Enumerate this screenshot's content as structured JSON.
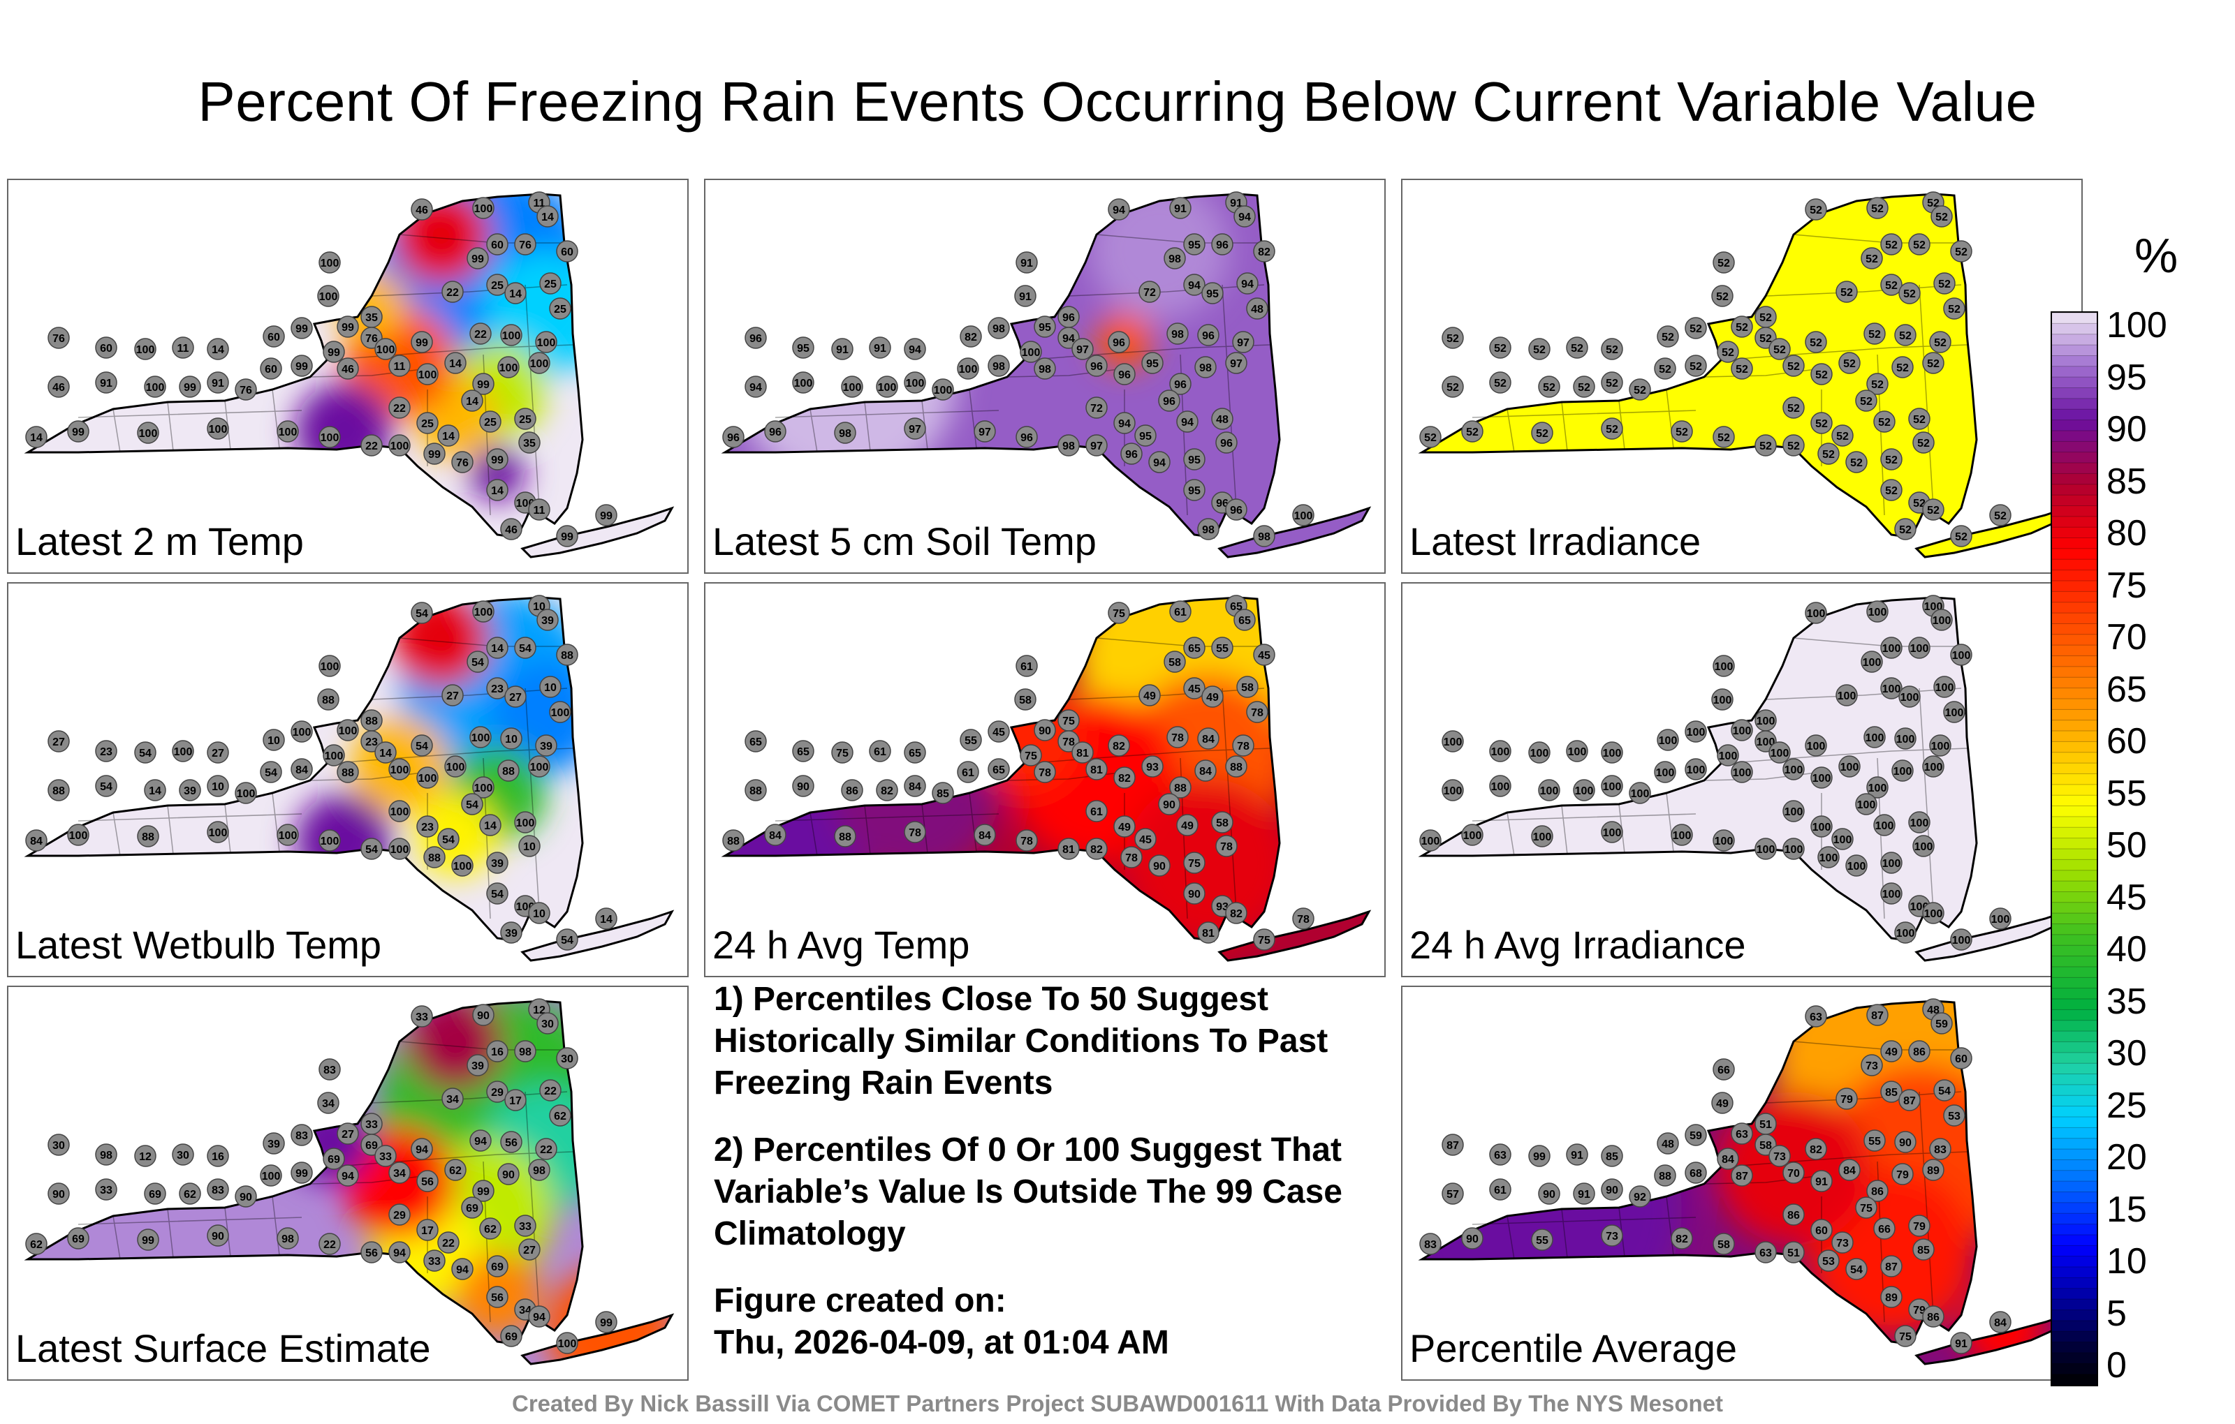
{
  "title": "Percent Of Freezing Rain Events Occurring Below Current Variable Value",
  "panels": [
    {
      "label": "Latest 2 m Temp"
    },
    {
      "label": "Latest 5 cm Soil Temp"
    },
    {
      "label": "Latest Irradiance"
    },
    {
      "label": "Latest Wetbulb Temp"
    },
    {
      "label": "24 h Avg Temp"
    },
    {
      "label": "24 h Avg Irradiance"
    },
    {
      "label": "Latest Surface Estimate"
    },
    {
      "label": "Percentile Average"
    }
  ],
  "notes": {
    "n1": "1) Percentiles Close To 50 Suggest Historically Similar Conditions To Past Freezing Rain Events",
    "n2": "2) Percentiles Of 0 Or 100 Suggest That Variable’s Value Is Outside The 99 Case Climatology",
    "created_label": "Figure created on:",
    "created_value": "Thu, 2026-04-09, at 01:04 AM"
  },
  "colorbar": {
    "unit": "%",
    "ticks": [
      "100",
      "95",
      "90",
      "85",
      "80",
      "75",
      "70",
      "65",
      "60",
      "55",
      "50",
      "45",
      "40",
      "35",
      "30",
      "25",
      "20",
      "15",
      "10",
      "5",
      "0"
    ]
  },
  "footer": "Created By Nick Bassill Via COMET Partners Project SUBAWD001611 With Data Provided By The NYS Mesonet",
  "chart_data": [
    {
      "type": "heatmap",
      "title": "Latest 2 m Temp",
      "units": "%",
      "range": [
        0,
        100
      ],
      "station_values": [
        46,
        100,
        11,
        14,
        60,
        76,
        60,
        99,
        100,
        22,
        25,
        14,
        25,
        25,
        35,
        99,
        76,
        99,
        100,
        22,
        100,
        100,
        100,
        100,
        99,
        14,
        14,
        100,
        11,
        46,
        99,
        99,
        60,
        76,
        91,
        99,
        100,
        91
      ]
    },
    {
      "type": "heatmap",
      "title": "Latest 5 cm Soil Temp",
      "units": "%",
      "range": [
        0,
        100
      ],
      "station_values": [
        94,
        91,
        91,
        94,
        95,
        96,
        82,
        98,
        91,
        72,
        94,
        95,
        94,
        48,
        96,
        95,
        94,
        96,
        97,
        98,
        96,
        97,
        97,
        98,
        96,
        96,
        95,
        96,
        96,
        98,
        100,
        98,
        100,
        100,
        100,
        100,
        100,
        100
      ]
    },
    {
      "type": "heatmap",
      "title": "Latest Irradiance",
      "units": "%",
      "range": [
        0,
        100
      ],
      "station_values": [
        52,
        52,
        52,
        52,
        52,
        52,
        52,
        52,
        52,
        52,
        52,
        52,
        52,
        52,
        52,
        52,
        52,
        52,
        52,
        52,
        52,
        52,
        52,
        52,
        52,
        52,
        52,
        52,
        52,
        52,
        52,
        52,
        52,
        52
      ]
    },
    {
      "type": "heatmap",
      "title": "Latest Wetbulb Temp",
      "units": "%",
      "range": [
        0,
        100
      ],
      "station_values": [
        54,
        100,
        10,
        39,
        14,
        54,
        88,
        54,
        100,
        27,
        23,
        27,
        10,
        100,
        88,
        100,
        23,
        54,
        14,
        100,
        10,
        39,
        100,
        88,
        100,
        54,
        100,
        100,
        100,
        88,
        100,
        84
      ]
    },
    {
      "type": "heatmap",
      "title": "24 h Avg Temp",
      "units": "%",
      "range": [
        0,
        100
      ],
      "station_values": [
        75,
        61,
        65,
        65,
        65,
        55,
        45,
        58,
        61,
        49,
        45,
        49,
        58,
        78,
        75,
        90,
        78,
        82,
        81,
        78,
        84,
        78,
        88,
        84,
        88,
        90,
        93,
        82,
        81,
        78,
        75,
        65,
        61,
        85,
        84,
        82,
        86,
        90,
        88
      ]
    },
    {
      "type": "heatmap",
      "title": "24 h Avg Irradiance",
      "units": "%",
      "range": [
        0,
        100
      ],
      "station_values": [
        100,
        100,
        100,
        100,
        100,
        100,
        100,
        100,
        100,
        100,
        100,
        100,
        100,
        100,
        100,
        100,
        100,
        100,
        100,
        100,
        100,
        100,
        100,
        100,
        100,
        100,
        100
      ]
    },
    {
      "type": "heatmap",
      "title": "Latest Surface Estimate",
      "units": "%",
      "range": [
        0,
        100
      ],
      "station_values": [
        33,
        90,
        12,
        30,
        16,
        98,
        30,
        39,
        83,
        34,
        29,
        17,
        22,
        62,
        33,
        27,
        69,
        94,
        33,
        94,
        56,
        22,
        98,
        90,
        99,
        69,
        62,
        56,
        34,
        94,
        69,
        99,
        100,
        90,
        83,
        62,
        69
      ]
    },
    {
      "type": "heatmap",
      "title": "Percentile Average",
      "units": "%",
      "range": [
        0,
        100
      ],
      "station_values": [
        63,
        87,
        48,
        59,
        49,
        86,
        60,
        73,
        66,
        79,
        85,
        87,
        54,
        53,
        51,
        63,
        58,
        82,
        73,
        55,
        90,
        83,
        89,
        79,
        86,
        75,
        84,
        91,
        70,
        87,
        84,
        68,
        88,
        92,
        90,
        91,
        90,
        61,
        57,
        99,
        91,
        85
      ]
    }
  ]
}
